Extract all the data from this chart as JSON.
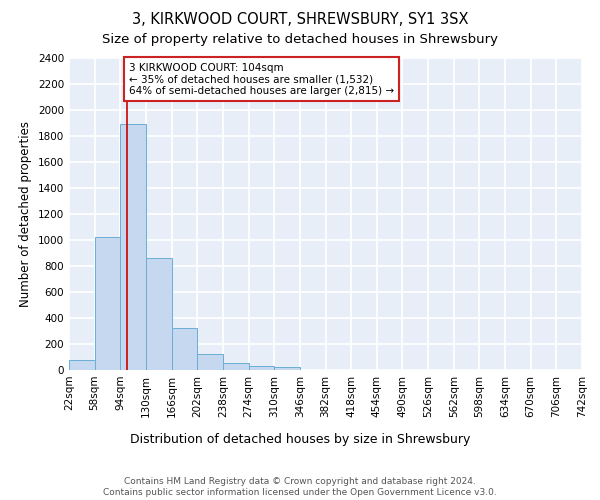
{
  "title1": "3, KIRKWOOD COURT, SHREWSBURY, SY1 3SX",
  "title2": "Size of property relative to detached houses in Shrewsbury",
  "xlabel": "Distribution of detached houses by size in Shrewsbury",
  "ylabel": "Number of detached properties",
  "bin_edges": [
    22,
    58,
    94,
    130,
    166,
    202,
    238,
    274,
    310,
    346,
    382,
    418,
    454,
    490,
    526,
    562,
    598,
    634,
    670,
    706,
    742
  ],
  "bar_heights": [
    80,
    1020,
    1890,
    860,
    320,
    120,
    50,
    30,
    20,
    0,
    0,
    0,
    0,
    0,
    0,
    0,
    0,
    0,
    0,
    0
  ],
  "bar_color": "#c5d8f0",
  "bar_edge_color": "#6baed6",
  "property_size": 104,
  "property_line_color": "#cc0000",
  "annotation_text": "3 KIRKWOOD COURT: 104sqm\n← 35% of detached houses are smaller (1,532)\n64% of semi-detached houses are larger (2,815) →",
  "annotation_box_color": "white",
  "annotation_box_edge_color": "#cc2222",
  "ylim": [
    0,
    2400
  ],
  "yticks": [
    0,
    200,
    400,
    600,
    800,
    1000,
    1200,
    1400,
    1600,
    1800,
    2000,
    2200,
    2400
  ],
  "background_color": "#e8eef8",
  "grid_color": "white",
  "footer": "Contains HM Land Registry data © Crown copyright and database right 2024.\nContains public sector information licensed under the Open Government Licence v3.0.",
  "title1_fontsize": 10.5,
  "title2_fontsize": 9.5,
  "ylabel_fontsize": 8.5,
  "xlabel_fontsize": 9,
  "annotation_fontsize": 7.5,
  "tick_fontsize": 7.5,
  "footer_fontsize": 6.5
}
